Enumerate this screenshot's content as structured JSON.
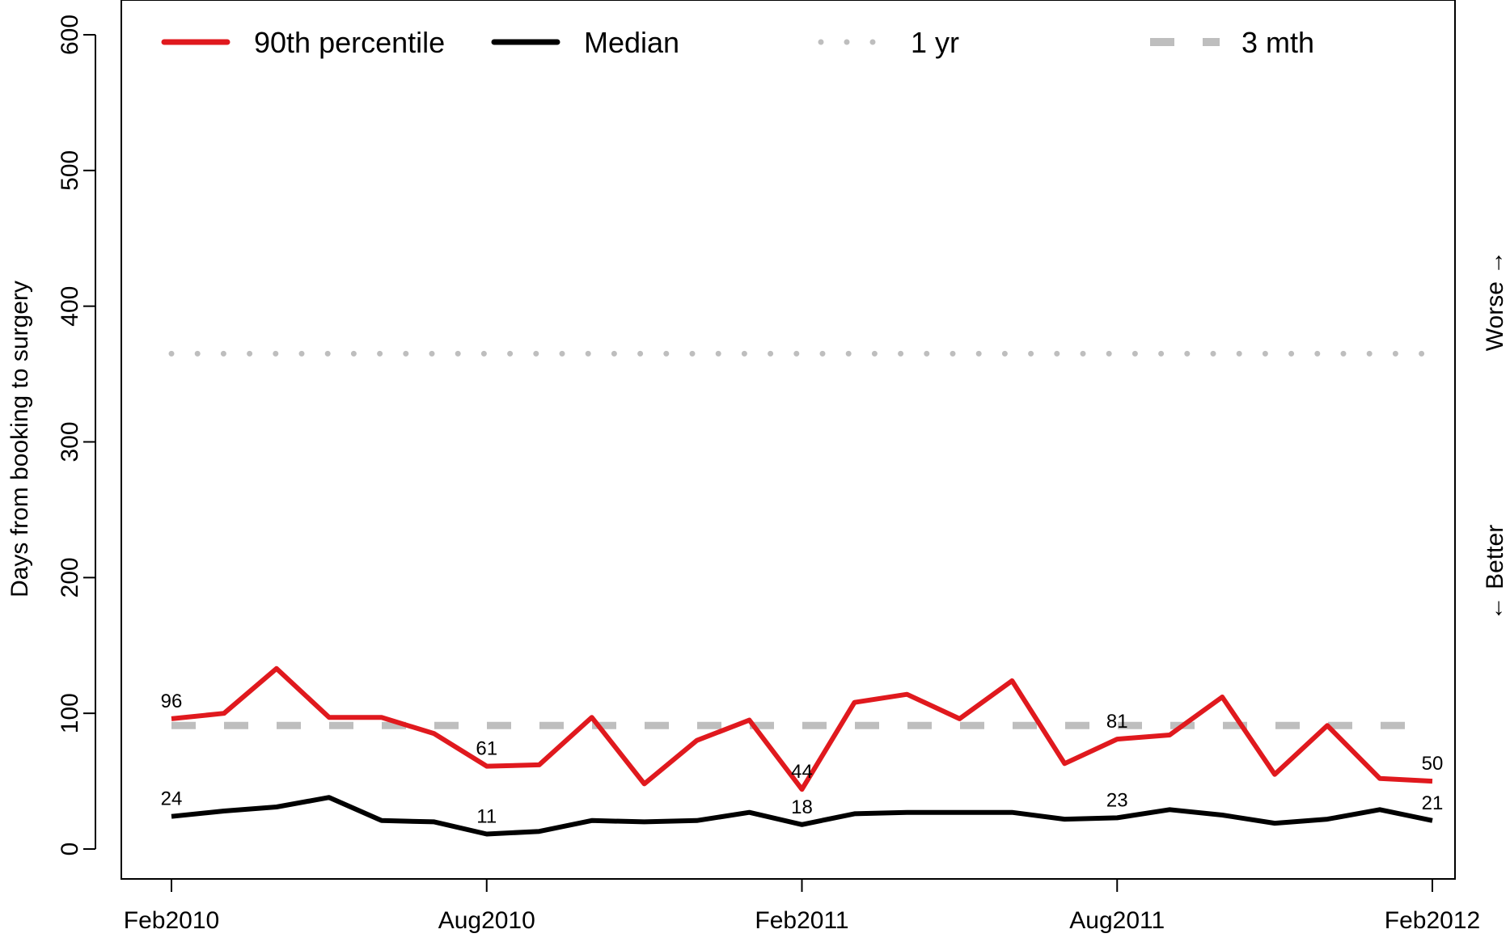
{
  "chart_data": {
    "type": "line",
    "ylabel": "Days from booking to surgery",
    "ylim": [
      0,
      600
    ],
    "yticks": [
      0,
      100,
      200,
      300,
      400,
      500,
      600
    ],
    "x_tick_labels": [
      "Feb2010",
      "Aug2010",
      "Feb2011",
      "Aug2011",
      "Feb2012"
    ],
    "x_tick_positions": [
      0,
      6,
      12,
      18,
      24
    ],
    "x_range": [
      -1,
      24.4
    ],
    "side_labels": {
      "worse": "Worse →",
      "better": "← Better"
    },
    "legend_placement": "top",
    "series": [
      {
        "name": "90th percentile",
        "color": "#e0191e",
        "style": "solid",
        "values": [
          96,
          100,
          133,
          97,
          97,
          85,
          61,
          62,
          97,
          48,
          80,
          95,
          44,
          108,
          114,
          96,
          124,
          63,
          81,
          84,
          112,
          55,
          91,
          52,
          50
        ]
      },
      {
        "name": "Median",
        "color": "#000000",
        "style": "solid",
        "values": [
          24,
          28,
          31,
          38,
          21,
          20,
          11,
          13,
          21,
          20,
          21,
          27,
          18,
          26,
          27,
          27,
          27,
          22,
          23,
          29,
          25,
          19,
          22,
          29,
          21
        ]
      },
      {
        "name": "1 yr",
        "color": "#bebebe",
        "style": "dotted",
        "values": [
          365,
          365
        ]
      },
      {
        "name": "3 mth",
        "color": "#bebebe",
        "style": "dashed",
        "values": [
          91,
          91
        ]
      }
    ],
    "data_labels": [
      {
        "series": "90th percentile",
        "x": 0,
        "text": "96"
      },
      {
        "series": "90th percentile",
        "x": 6,
        "text": "61"
      },
      {
        "series": "90th percentile",
        "x": 12,
        "text": "44"
      },
      {
        "series": "90th percentile",
        "x": 18,
        "text": "81"
      },
      {
        "series": "90th percentile",
        "x": 24,
        "text": "50"
      },
      {
        "series": "Median",
        "x": 0,
        "text": "24"
      },
      {
        "series": "Median",
        "x": 6,
        "text": "11"
      },
      {
        "series": "Median",
        "x": 12,
        "text": "18"
      },
      {
        "series": "Median",
        "x": 18,
        "text": "23"
      },
      {
        "series": "Median",
        "x": 24,
        "text": "21"
      }
    ]
  }
}
